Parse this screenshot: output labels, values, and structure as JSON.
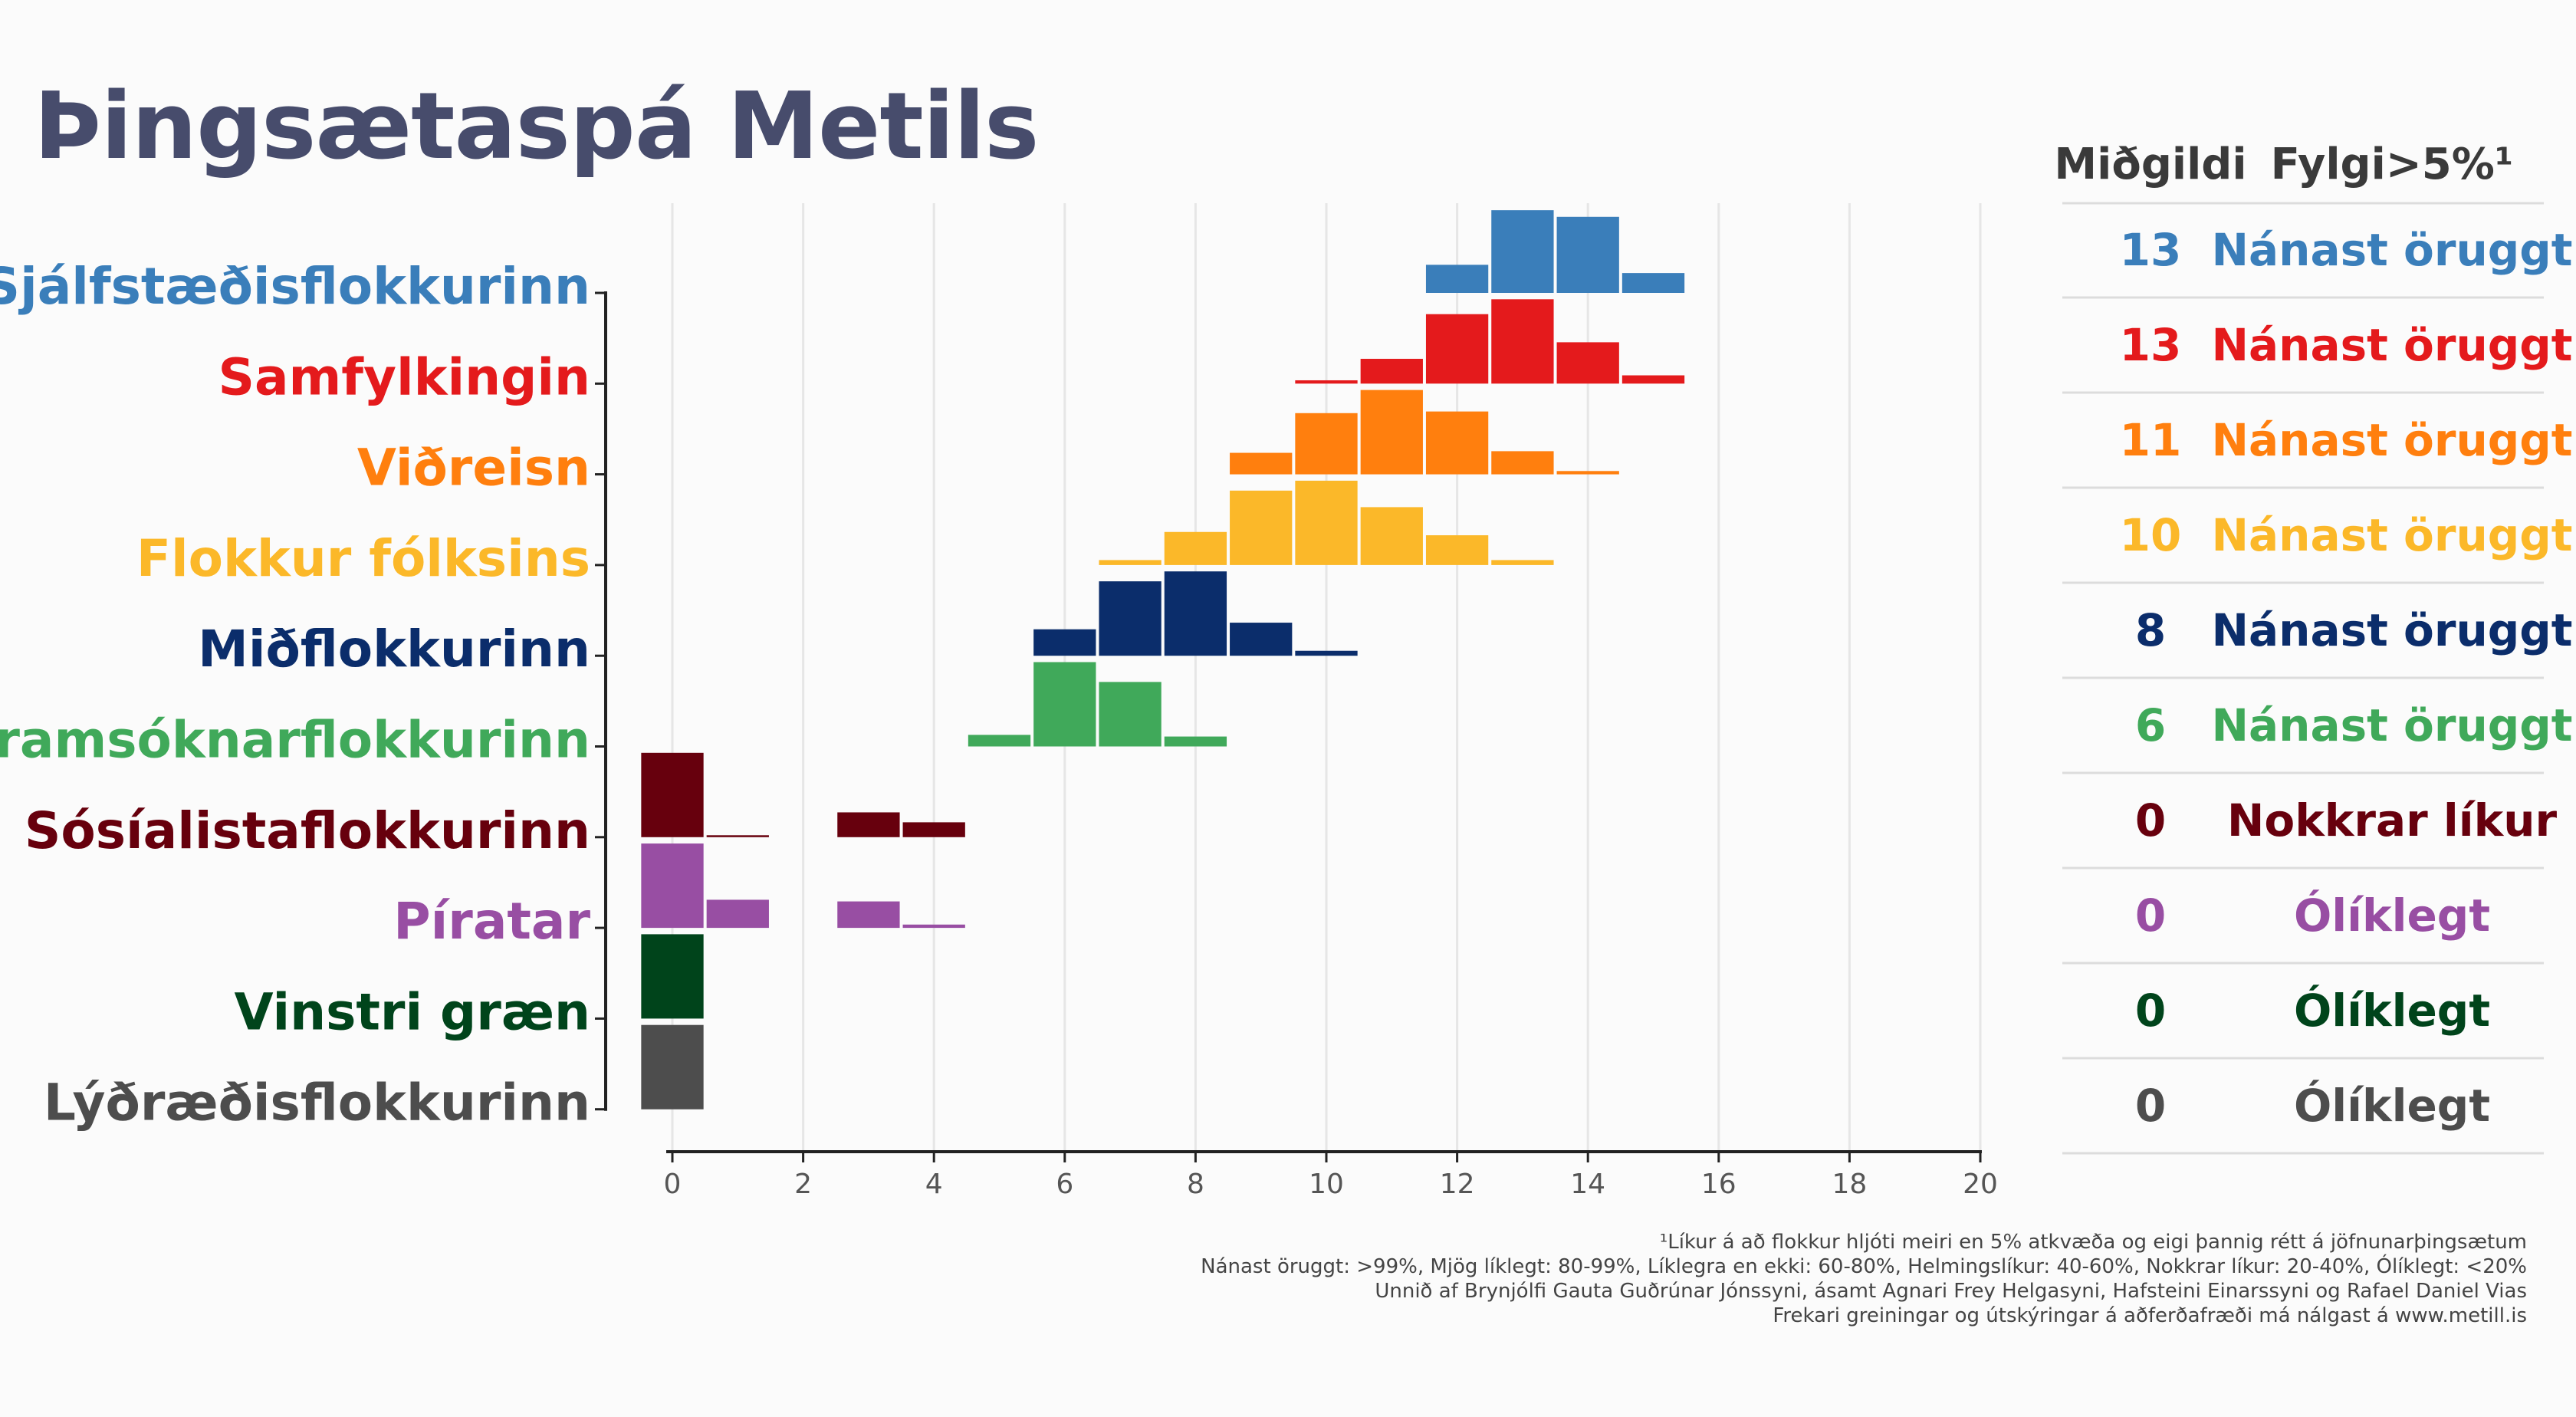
{
  "title": "Þingsætaspá Metils",
  "table": {
    "header_median": "Miðgildi",
    "header_support": "Fylgi>5%¹"
  },
  "footnotes": [
    "¹Líkur á að flokkur hljóti meiri en 5% atkvæða og eigi þannig rétt á jöfnunarþingsætum",
    "Nánast öruggt: >99%, Mjög líklegt: 80-99%, Líklegra en ekki: 60-80%, Helmingslíkur: 40-60%, Nokkrar líkur: 20-40%, Ólíklegt: <20%",
    "Unnið af Brynjólfi Gauta Guðrúnar Jónssyni, ásamt Agnari Frey Helgasyni, Hafsteini Einarssyni og Rafael Daniel Vias",
    "Frekari greiningar og útskýringar á aðferðafræði má nálgast á www.metill.is"
  ],
  "chart_data": {
    "type": "bar",
    "subtype": "ridgeline-histogram",
    "x_ticks": [
      0,
      2,
      4,
      6,
      8,
      10,
      12,
      14,
      16,
      18,
      20
    ],
    "xlim": [
      0,
      20
    ],
    "grid": true,
    "series": [
      {
        "name": "Sjálfstæðisflokkurinn",
        "color": "#3a7eba",
        "median": "13",
        "support": "Nánast öruggt",
        "seats": [
          12,
          13,
          14,
          15
        ],
        "probability": [
          0.17,
          0.5,
          0.46,
          0.12
        ]
      },
      {
        "name": "Samfylkingin",
        "color": "#e41a1c",
        "median": "13",
        "support": "Nánast öruggt",
        "seats": [
          10,
          11,
          12,
          13,
          14,
          15
        ],
        "probability": [
          0.02,
          0.15,
          0.42,
          0.51,
          0.25,
          0.05
        ]
      },
      {
        "name": "Viðreisn",
        "color": "#ff7f0e",
        "median": "11",
        "support": "Nánast öruggt",
        "seats": [
          9,
          10,
          11,
          12,
          13,
          14
        ],
        "probability": [
          0.13,
          0.37,
          0.51,
          0.38,
          0.14,
          0.02
        ]
      },
      {
        "name": "Flokkur fólksins",
        "color": "#fbb829",
        "median": "10",
        "support": "Nánast öruggt",
        "seats": [
          7,
          8,
          9,
          10,
          11,
          12,
          13
        ],
        "probability": [
          0.03,
          0.2,
          0.45,
          0.51,
          0.35,
          0.18,
          0.03
        ]
      },
      {
        "name": "Miðflokkurinn",
        "color": "#0b2d6b",
        "median": "8",
        "support": "Nánast öruggt",
        "seats": [
          6,
          7,
          8,
          9,
          10
        ],
        "probability": [
          0.16,
          0.45,
          0.51,
          0.2,
          0.03
        ]
      },
      {
        "name": "Framsóknarflokkurinn",
        "color": "#40a95a",
        "median": "6",
        "support": "Nánast öruggt",
        "seats": [
          5,
          6,
          7,
          8
        ],
        "probability": [
          0.07,
          0.51,
          0.39,
          0.06
        ]
      },
      {
        "name": "Sósíalistaflokkurinn",
        "color": "#67000d",
        "median": "0",
        "support": "Nokkrar líkur",
        "seats": [
          0,
          1,
          3,
          4
        ],
        "probability": [
          0.51,
          0.01,
          0.15,
          0.09
        ]
      },
      {
        "name": "Píratar",
        "color": "#984ea3",
        "median": "0",
        "support": "Ólíklegt",
        "seats": [
          0,
          1,
          3,
          4
        ],
        "probability": [
          0.51,
          0.17,
          0.16,
          0.02
        ]
      },
      {
        "name": "Vinstri græn",
        "color": "#00441b",
        "median": "0",
        "support": "Ólíklegt",
        "seats": [
          0
        ],
        "probability": [
          0.51
        ]
      },
      {
        "name": "Lýðræðisflokkurinn",
        "color": "#4d4d4d",
        "median": "0",
        "support": "Ólíklegt",
        "seats": [
          0
        ],
        "probability": [
          0.51
        ]
      }
    ]
  }
}
